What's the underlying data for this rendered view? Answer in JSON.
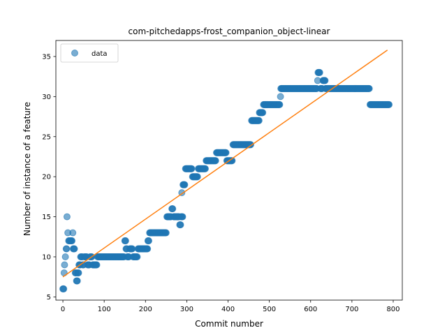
{
  "chart_data": {
    "type": "scatter",
    "title": "com-pitchedapps-frost_companion_object-linear",
    "xlabel": "Commit number",
    "ylabel": "Number of instance of a feature",
    "xlim": [
      -17,
      822
    ],
    "ylim": [
      4.6,
      37.0
    ],
    "xticks": [
      0,
      100,
      200,
      300,
      400,
      500,
      600,
      700,
      800
    ],
    "yticks": [
      5,
      10,
      15,
      20,
      25,
      30,
      35
    ],
    "grid": false,
    "legend": {
      "placement": "top-left",
      "entries": [
        "data"
      ]
    },
    "colors": {
      "data": "#1f77b4",
      "fit": "#ff7f0e"
    },
    "series": [
      {
        "name": "data",
        "kind": "scatter",
        "segments": [
          [
            0,
            2,
            6
          ],
          [
            3,
            3,
            8
          ],
          [
            4,
            4,
            9
          ],
          [
            6,
            6,
            10
          ],
          [
            8,
            9,
            11
          ],
          [
            10,
            10,
            15
          ],
          [
            12,
            12,
            13
          ],
          [
            14,
            16,
            12
          ],
          [
            18,
            22,
            12
          ],
          [
            24,
            24,
            13
          ],
          [
            25,
            28,
            11
          ],
          [
            30,
            32,
            8
          ],
          [
            33,
            35,
            7
          ],
          [
            36,
            38,
            8
          ],
          [
            39,
            42,
            9
          ],
          [
            43,
            47,
            10
          ],
          [
            48,
            50,
            9
          ],
          [
            52,
            58,
            10
          ],
          [
            60,
            64,
            9
          ],
          [
            66,
            70,
            10
          ],
          [
            72,
            82,
            9
          ],
          [
            84,
            148,
            10
          ],
          [
            150,
            152,
            12
          ],
          [
            153,
            155,
            11
          ],
          [
            156,
            160,
            10
          ],
          [
            162,
            168,
            11
          ],
          [
            170,
            180,
            10
          ],
          [
            182,
            205,
            11
          ],
          [
            206,
            208,
            12
          ],
          [
            210,
            250,
            13
          ],
          [
            252,
            262,
            15
          ],
          [
            264,
            266,
            16
          ],
          [
            268,
            282,
            15
          ],
          [
            283,
            285,
            14
          ],
          [
            286,
            290,
            15
          ],
          [
            288,
            288,
            18
          ],
          [
            291,
            295,
            19
          ],
          [
            297,
            312,
            21
          ],
          [
            314,
            326,
            20
          ],
          [
            328,
            345,
            21
          ],
          [
            347,
            370,
            22
          ],
          [
            372,
            395,
            23
          ],
          [
            397,
            410,
            22
          ],
          [
            412,
            455,
            24
          ],
          [
            457,
            475,
            27
          ],
          [
            476,
            484,
            28
          ],
          [
            486,
            525,
            29
          ],
          [
            527,
            527,
            30
          ],
          [
            528,
            615,
            31
          ],
          [
            617,
            617,
            32
          ],
          [
            618,
            622,
            33
          ],
          [
            624,
            628,
            31
          ],
          [
            630,
            635,
            32
          ],
          [
            636,
            742,
            31
          ],
          [
            744,
            790,
            29
          ]
        ]
      },
      {
        "name": "fit",
        "kind": "line",
        "x": [
          0,
          786
        ],
        "y": [
          7.5,
          35.8
        ]
      }
    ]
  }
}
